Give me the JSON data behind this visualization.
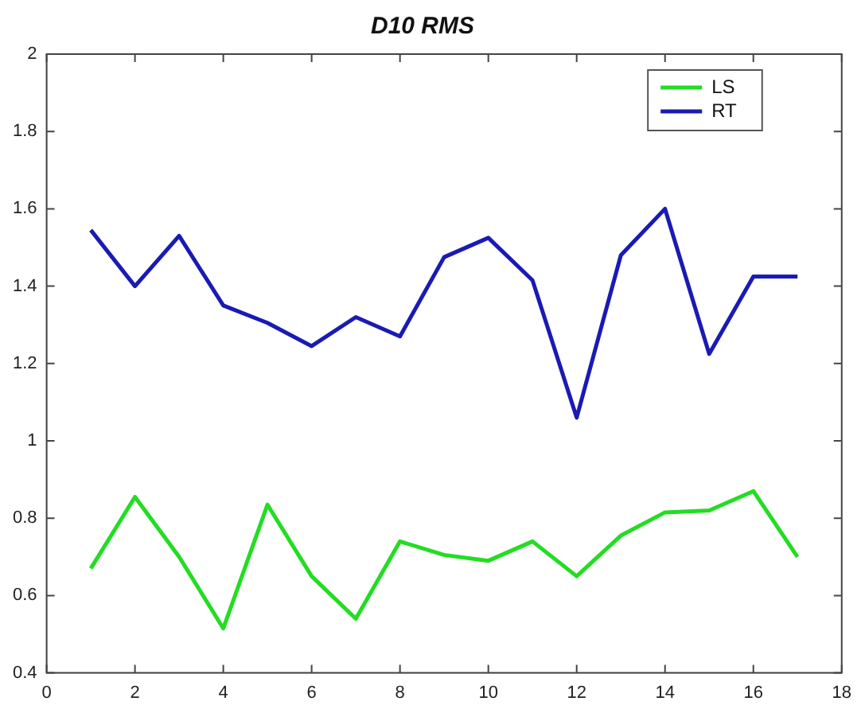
{
  "chart_data": {
    "type": "line",
    "title": "D10 RMS",
    "x": [
      1,
      2,
      3,
      4,
      5,
      6,
      7,
      8,
      9,
      10,
      11,
      12,
      13,
      14,
      15,
      16,
      17
    ],
    "series": [
      {
        "name": "LS",
        "color": "#22dd22",
        "values": [
          0.67,
          0.855,
          0.7,
          0.515,
          0.835,
          0.65,
          0.54,
          0.74,
          0.705,
          0.69,
          0.74,
          0.65,
          0.755,
          0.815,
          0.82,
          0.87,
          0.7
        ]
      },
      {
        "name": "RT",
        "color": "#1a1ab4",
        "values": [
          1.545,
          1.4,
          1.53,
          1.35,
          1.305,
          1.245,
          1.32,
          1.27,
          1.475,
          1.525,
          1.415,
          1.06,
          1.48,
          1.6,
          1.225,
          1.425,
          1.425
        ]
      }
    ],
    "xlim": [
      0,
      18
    ],
    "xticks": [
      0,
      2,
      4,
      6,
      8,
      10,
      12,
      14,
      16,
      18
    ],
    "ylim": [
      0.4,
      2
    ],
    "yticks": [
      0.4,
      0.6,
      0.8,
      1,
      1.2,
      1.4,
      1.6,
      1.8,
      2
    ],
    "grid": false,
    "legend": "top right",
    "marker": "none",
    "line_style": "solid"
  }
}
